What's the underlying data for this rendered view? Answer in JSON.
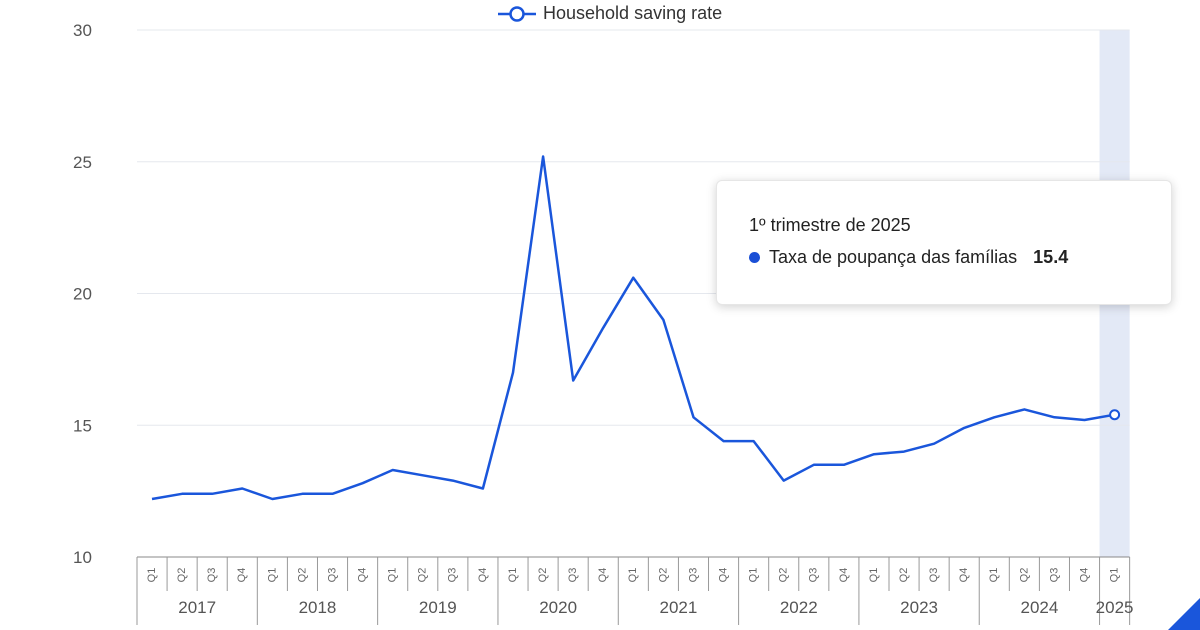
{
  "colors": {
    "line": "#1a56db",
    "highlight": "#e3e9f6",
    "grid": "#e5e8ee"
  },
  "legend": {
    "label": "Household saving rate",
    "icon": "circle-line-marker-icon"
  },
  "tooltip": {
    "title": "1º trimestre de 2025",
    "series_label": "Taxa de poupança das famílias",
    "value": "15.4"
  },
  "chart_data": {
    "type": "line",
    "title": "",
    "xlabel": "",
    "ylabel": "",
    "ylim": [
      10,
      30
    ],
    "yticks": [
      "10",
      "15",
      "20",
      "25",
      "30"
    ],
    "quarters": [
      "Q1",
      "Q2",
      "Q3",
      "Q4",
      "Q1",
      "Q2",
      "Q3",
      "Q4",
      "Q1",
      "Q2",
      "Q3",
      "Q4",
      "Q1",
      "Q2",
      "Q3",
      "Q4",
      "Q1",
      "Q2",
      "Q3",
      "Q4",
      "Q1",
      "Q2",
      "Q3",
      "Q4",
      "Q1",
      "Q2",
      "Q3",
      "Q4",
      "Q1",
      "Q2",
      "Q3",
      "Q4",
      "Q1"
    ],
    "years": [
      "2017",
      "2018",
      "2019",
      "2020",
      "2021",
      "2022",
      "2023",
      "2024",
      "2025"
    ],
    "grid": true,
    "legend_position": "top-center",
    "highlighted_index": 32,
    "series": [
      {
        "name": "Household saving rate",
        "values": [
          12.2,
          12.4,
          12.4,
          12.6,
          12.2,
          12.4,
          12.4,
          12.8,
          13.3,
          13.1,
          12.9,
          12.6,
          17.0,
          25.2,
          16.7,
          18.7,
          20.6,
          19.0,
          15.3,
          14.4,
          14.4,
          12.9,
          13.5,
          13.5,
          13.9,
          14.0,
          14.3,
          14.9,
          15.3,
          15.6,
          15.3,
          15.2,
          15.4
        ]
      }
    ]
  }
}
